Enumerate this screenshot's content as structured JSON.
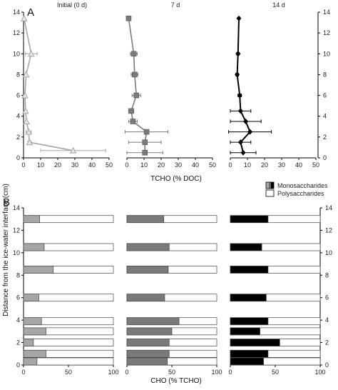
{
  "figure": {
    "panel_a_letter": "A",
    "panel_b_letter": "B",
    "y_axis_title": "Distance from the ice-water interface (cm)",
    "panel_a_xlabel": "TCHO (% DOC)",
    "panel_b_xlabel": "CHO (% TCHO)"
  },
  "legend": {
    "mono_label": "Monosaccharides",
    "poly_label": "Polysaccharides"
  },
  "colors": {
    "initial": "#a6a6a6",
    "day7": "#7a7a7a",
    "day14": "#000000",
    "poly_fill": "#ffffff",
    "frame": "#000000"
  },
  "chart_data": [
    {
      "type": "line",
      "panel": "A",
      "title": "Initial (0 d)",
      "xlim": [
        0,
        50
      ],
      "ylim": [
        0,
        14
      ],
      "xticks": [
        0,
        10,
        20,
        30,
        40,
        50
      ],
      "yticks": [
        0,
        2,
        4,
        6,
        8,
        10,
        12,
        14
      ],
      "marker": "triangle",
      "points": [
        {
          "y": 13.4,
          "x": 0.3,
          "err": 0
        },
        {
          "y": 10.0,
          "x": 4.5,
          "err": 3.5
        },
        {
          "y": 8.0,
          "x": 1.5,
          "err": 0
        },
        {
          "y": 6.0,
          "x": 0.8,
          "err": 0
        },
        {
          "y": 4.5,
          "x": 1.2,
          "err": 0
        },
        {
          "y": 3.5,
          "x": 1.7,
          "err": 0
        },
        {
          "y": 2.5,
          "x": 3.0,
          "err": 1.5
        },
        {
          "y": 1.5,
          "x": 3.5,
          "err": 1.0
        },
        {
          "y": 0.7,
          "x": 29.0,
          "err": 19.0
        }
      ]
    },
    {
      "type": "line",
      "panel": "A",
      "title": "7 d",
      "xlim": [
        0,
        50
      ],
      "ylim": [
        0,
        14
      ],
      "xticks": [
        0,
        10,
        20,
        30,
        40,
        50
      ],
      "yticks": [
        0,
        2,
        4,
        6,
        8,
        10,
        12,
        14
      ],
      "marker": "square",
      "points": [
        {
          "y": 13.4,
          "x": 1.0,
          "err": 0
        },
        {
          "y": 10.0,
          "x": 4.0,
          "err": 2.0
        },
        {
          "y": 8.0,
          "x": 4.5,
          "err": 2.0
        },
        {
          "y": 6.0,
          "x": 5.5,
          "err": 2.5
        },
        {
          "y": 4.5,
          "x": 2.5,
          "err": 1.5
        },
        {
          "y": 3.5,
          "x": 3.5,
          "err": 2.5
        },
        {
          "y": 2.5,
          "x": 11.5,
          "err": 12.5
        },
        {
          "y": 1.5,
          "x": 10.5,
          "err": 9.5
        },
        {
          "y": 0.5,
          "x": 10.5,
          "err": 10.5
        }
      ]
    },
    {
      "type": "line",
      "panel": "A",
      "title": "14 d",
      "xlim": [
        0,
        50
      ],
      "ylim": [
        0,
        14
      ],
      "xticks": [
        0,
        10,
        20,
        30,
        40,
        50
      ],
      "yticks": [
        0,
        2,
        4,
        6,
        8,
        10,
        12,
        14
      ],
      "marker": "diamond",
      "points": [
        {
          "y": 13.4,
          "x": 5.0,
          "err": 0
        },
        {
          "y": 10.0,
          "x": 4.5,
          "err": 0.8
        },
        {
          "y": 8.0,
          "x": 4.0,
          "err": 0.8
        },
        {
          "y": 6.0,
          "x": 5.5,
          "err": 1.0
        },
        {
          "y": 4.5,
          "x": 6.0,
          "err": 6.0
        },
        {
          "y": 3.5,
          "x": 9.0,
          "err": 9.0
        },
        {
          "y": 2.5,
          "x": 11.5,
          "err": 12.5
        },
        {
          "y": 1.5,
          "x": 6.0,
          "err": 6.0
        },
        {
          "y": 0.5,
          "x": 7.5,
          "err": 7.5
        }
      ]
    },
    {
      "type": "bar",
      "panel": "B",
      "orientation": "horizontal",
      "stacked": true,
      "xlim": [
        0,
        100
      ],
      "ylim": [
        0,
        14
      ],
      "xticks": [
        0,
        50,
        100
      ],
      "yticks": [
        0,
        2,
        4,
        6,
        8,
        10,
        12,
        14
      ],
      "series": [
        {
          "name": "Monosaccharides",
          "bars": [
            {
              "y": 13.0,
              "value": 18
            },
            {
              "y": 10.5,
              "value": 23
            },
            {
              "y": 8.5,
              "value": 33
            },
            {
              "y": 6.0,
              "value": 17
            },
            {
              "y": 3.9,
              "value": 20
            },
            {
              "y": 3.0,
              "value": 25
            },
            {
              "y": 2.0,
              "value": 11
            },
            {
              "y": 1.0,
              "value": 25
            },
            {
              "y": 0.0,
              "value": 15
            }
          ]
        }
      ]
    },
    {
      "type": "bar",
      "panel": "B",
      "orientation": "horizontal",
      "stacked": true,
      "xlim": [
        0,
        100
      ],
      "ylim": [
        0,
        14
      ],
      "xticks": [
        0,
        50,
        100
      ],
      "yticks": [
        0,
        2,
        4,
        6,
        8,
        10,
        12,
        14
      ],
      "series": [
        {
          "name": "Monosaccharides",
          "bars": [
            {
              "y": 13.0,
              "value": 41
            },
            {
              "y": 10.5,
              "value": 47
            },
            {
              "y": 8.5,
              "value": 46
            },
            {
              "y": 6.0,
              "value": 42
            },
            {
              "y": 3.9,
              "value": 58
            },
            {
              "y": 3.0,
              "value": 50
            },
            {
              "y": 2.0,
              "value": 47
            },
            {
              "y": 1.0,
              "value": 47
            },
            {
              "y": 0.0,
              "value": 45
            }
          ]
        }
      ]
    },
    {
      "type": "bar",
      "panel": "B",
      "orientation": "horizontal",
      "stacked": true,
      "xlim": [
        0,
        100
      ],
      "ylim": [
        0,
        14
      ],
      "xticks": [
        0,
        50,
        100
      ],
      "yticks": [
        0,
        2,
        4,
        6,
        8,
        10,
        12,
        14
      ],
      "series": [
        {
          "name": "Monosaccharides",
          "bars": [
            {
              "y": 13.0,
              "value": 42
            },
            {
              "y": 10.5,
              "value": 35
            },
            {
              "y": 8.5,
              "value": 42
            },
            {
              "y": 6.0,
              "value": 40
            },
            {
              "y": 3.9,
              "value": 42
            },
            {
              "y": 3.0,
              "value": 33
            },
            {
              "y": 2.0,
              "value": 55
            },
            {
              "y": 1.0,
              "value": 42
            },
            {
              "y": 0.0,
              "value": 37
            }
          ]
        }
      ]
    }
  ]
}
